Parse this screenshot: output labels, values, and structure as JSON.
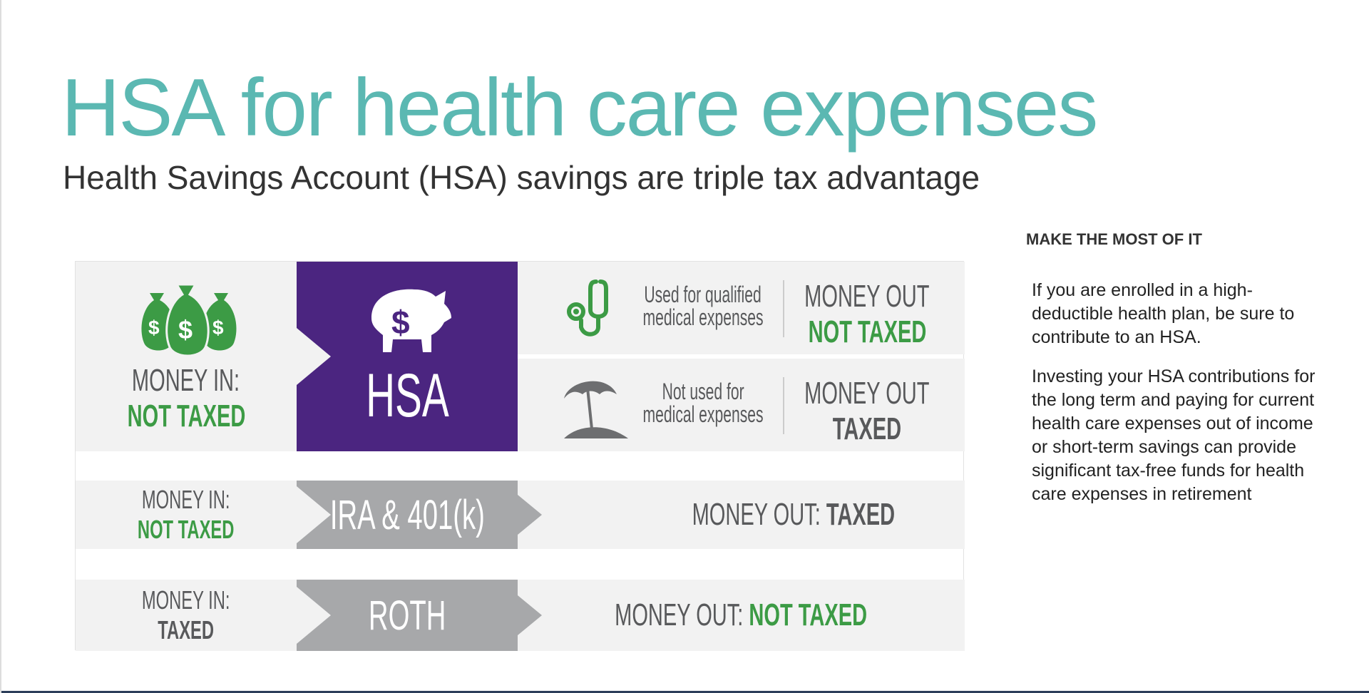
{
  "header": {
    "title": "HSA for health care expenses",
    "subtitle": "Health Savings Account (HSA) savings are triple tax advantage"
  },
  "infographic": {
    "colors": {
      "purple": "#4b2580",
      "gray_block": "#a7a8aa",
      "green": "#3c9b45",
      "panel": "#f2f2f2",
      "title_teal": "#5bb8b2"
    },
    "hsa": {
      "money_in_label": "MONEY IN:",
      "money_in_status": "NOT TAXED",
      "block_label": "HSA",
      "icons": [
        "money-bags-icon",
        "piggy-bank-icon"
      ],
      "outcomes": [
        {
          "icon": "stethoscope-icon",
          "condition_line1": "Used for qualified",
          "condition_line2": "medical expenses",
          "out_label": "MONEY OUT",
          "out_status": "NOT TAXED"
        },
        {
          "icon": "beach-umbrella-icon",
          "condition_line1": "Not used for",
          "condition_line2": "medical expenses",
          "out_label": "MONEY OUT",
          "out_status": "TAXED"
        }
      ]
    },
    "ira": {
      "money_in_label": "MONEY IN:",
      "money_in_status": "NOT TAXED",
      "block_label": "IRA & 401(k)",
      "out_label": "MONEY OUT:",
      "out_status": "TAXED"
    },
    "roth": {
      "money_in_label": "MONEY IN:",
      "money_in_status": "TAXED",
      "block_label": "ROTH",
      "out_label": "MONEY OUT:",
      "out_status": "NOT TAXED"
    }
  },
  "sidebar": {
    "heading": "MAKE THE MOST OF IT",
    "paragraphs": [
      "If you are enrolled in a high-deductible health plan, be sure to contribute to an HSA.",
      "Investing your HSA contributions for the long term and paying for current health care expenses out of income or short-term savings can provide significant tax-free funds for health care expenses in retirement"
    ]
  }
}
